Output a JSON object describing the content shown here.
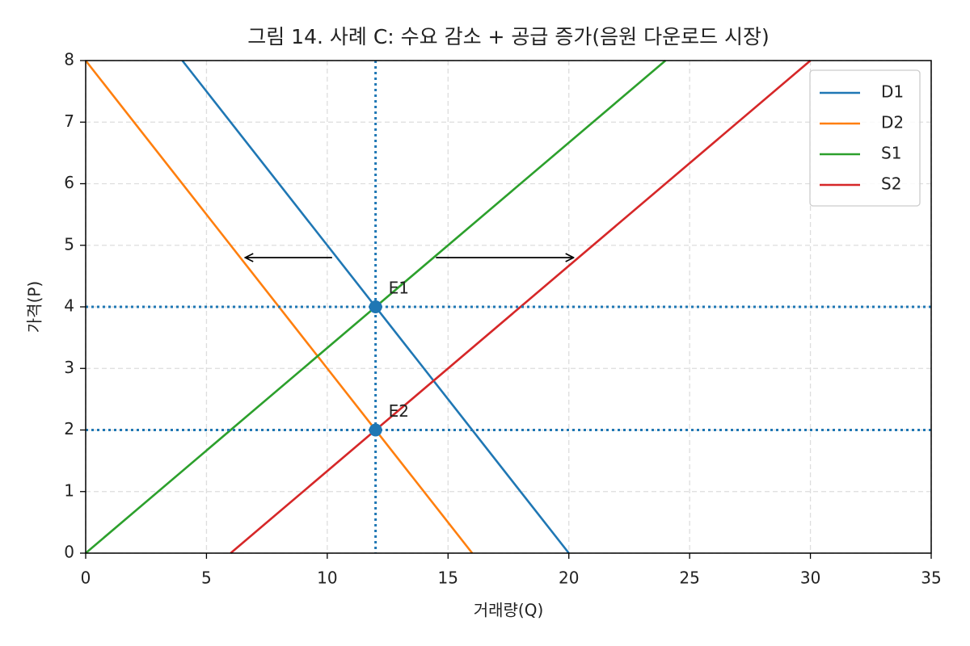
{
  "chart_data": {
    "type": "line",
    "title": "그림 14. 사례 C: 수요 감소 + 공급 증가(음원 다운로드 시장)",
    "xlabel": "거래량(Q)",
    "ylabel": "가격(P)",
    "xlim": [
      0,
      35
    ],
    "ylim": [
      0,
      8
    ],
    "xticks": [
      0,
      5,
      10,
      15,
      20,
      25,
      30,
      35
    ],
    "yticks": [
      0,
      1,
      2,
      3,
      4,
      5,
      6,
      7,
      8
    ],
    "grid": true,
    "legend": "upper right",
    "series": [
      {
        "name": "D1",
        "color": "#1f77b4",
        "x": [
          4,
          20
        ],
        "values": [
          8,
          0
        ]
      },
      {
        "name": "D2",
        "color": "#ff7f0e",
        "x": [
          0,
          16
        ],
        "values": [
          8,
          0
        ]
      },
      {
        "name": "S1",
        "color": "#2ca02c",
        "x": [
          0,
          24
        ],
        "values": [
          0,
          8
        ]
      },
      {
        "name": "S2",
        "color": "#d62728",
        "x": [
          6,
          30
        ],
        "values": [
          0,
          8
        ]
      }
    ],
    "points": [
      {
        "label": "E1",
        "x": 12,
        "y": 4,
        "color": "#1f77b4"
      },
      {
        "label": "E2",
        "x": 12,
        "y": 2,
        "color": "#1f77b4"
      }
    ],
    "vlines": [
      12
    ],
    "hlines": [
      4,
      2
    ],
    "ref_color": "#1f77b4",
    "arrows": [
      {
        "x": [
          10.2,
          6.6
        ],
        "y": 4.8
      },
      {
        "x": [
          14.5,
          20.2
        ],
        "y": 4.8
      }
    ]
  }
}
